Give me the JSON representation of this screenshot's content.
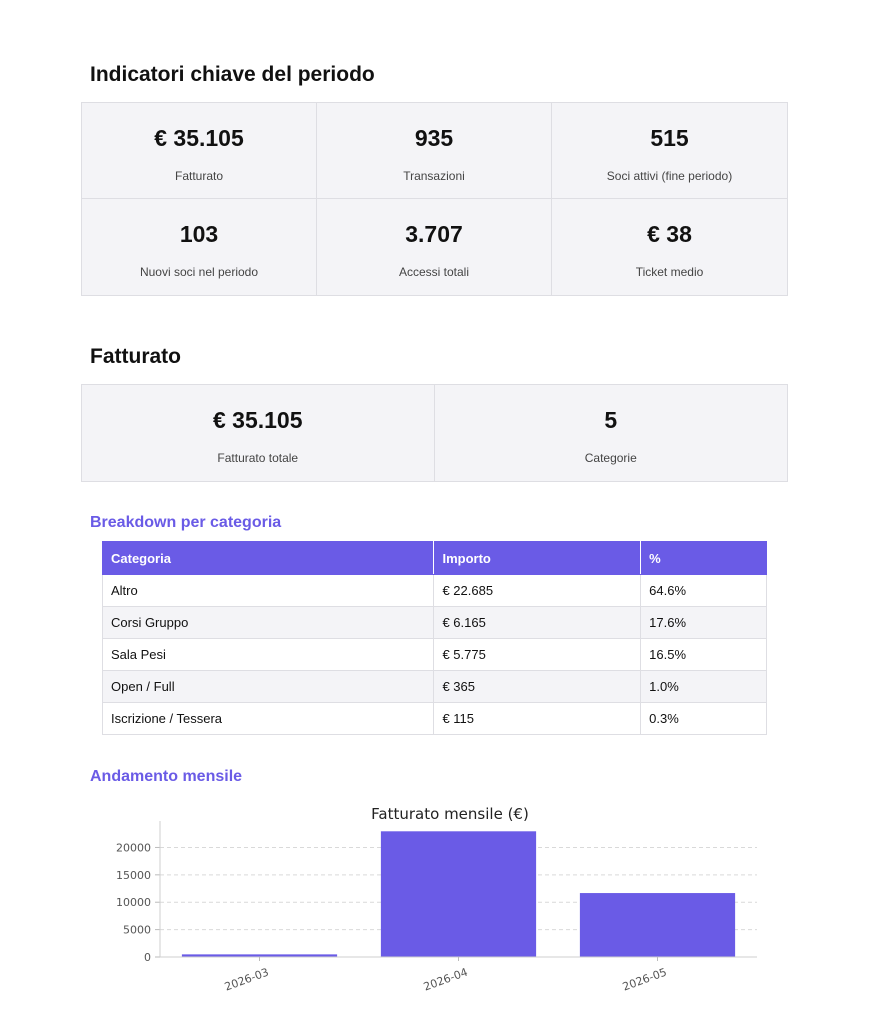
{
  "kpi_section": {
    "title": "Indicatori chiave del periodo",
    "cards": [
      {
        "value": "€ 35.105",
        "label": "Fatturato"
      },
      {
        "value": "935",
        "label": "Transazioni"
      },
      {
        "value": "515",
        "label": "Soci attivi (fine periodo)"
      },
      {
        "value": "103",
        "label": "Nuovi soci nel periodo"
      },
      {
        "value": "3.707",
        "label": "Accessi totali"
      },
      {
        "value": "€ 38",
        "label": "Ticket medio"
      }
    ]
  },
  "revenue_section": {
    "title": "Fatturato",
    "cards": [
      {
        "value": "€ 35.105",
        "label": "Fatturato totale"
      },
      {
        "value": "5",
        "label": "Categorie"
      }
    ]
  },
  "breakdown": {
    "title": "Breakdown per categoria",
    "headers": [
      "Categoria",
      "Importo",
      "%"
    ],
    "rows": [
      [
        "Altro",
        "€ 22.685",
        "64.6%"
      ],
      [
        "Corsi Gruppo",
        "€ 6.165",
        "17.6%"
      ],
      [
        "Sala Pesi",
        "€ 5.775",
        "16.5%"
      ],
      [
        "Open / Full",
        "€ 365",
        "1.0%"
      ],
      [
        "Iscrizione / Tessera",
        "€ 115",
        "0.3%"
      ]
    ]
  },
  "monthly": {
    "title": "Andamento mensile"
  },
  "chart_data": {
    "type": "bar",
    "title": "Fatturato mensile (€)",
    "xlabel": "",
    "ylabel": "",
    "categories": [
      "2026-03",
      "2026-04",
      "2026-05"
    ],
    "values": [
      480,
      22950,
      11675
    ],
    "yticks": [
      0,
      5000,
      10000,
      15000,
      20000
    ],
    "ylim": [
      0,
      24100
    ],
    "grid": true,
    "bar_color": "#6a5be6"
  }
}
